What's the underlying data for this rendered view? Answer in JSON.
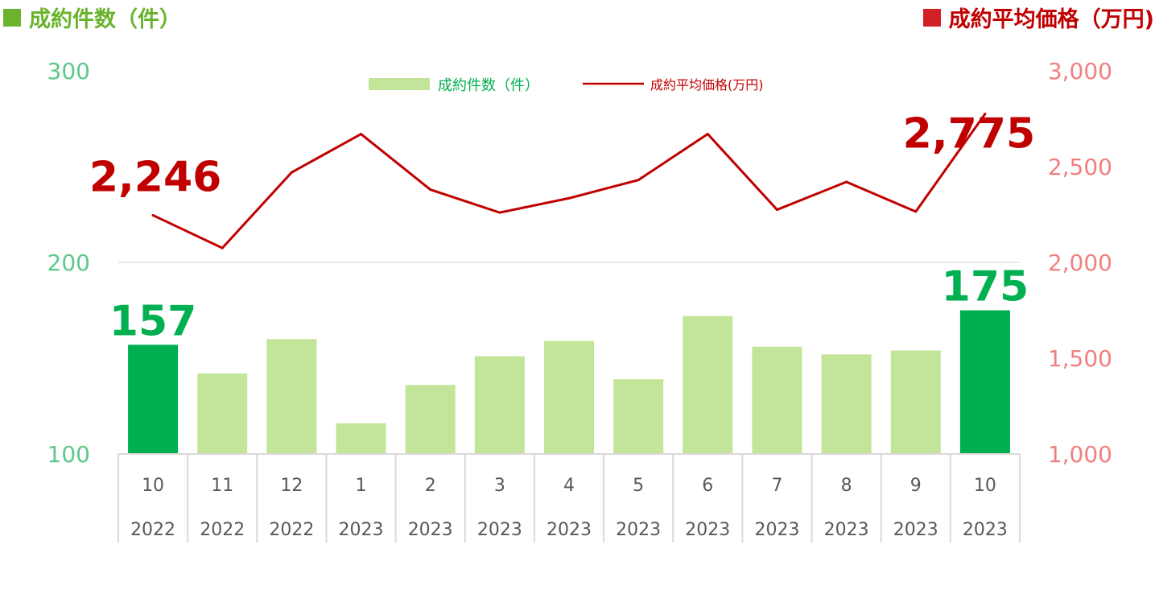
{
  "header": {
    "left_title": "成約件数（件）",
    "right_title": "成約平均価格（万円)",
    "left_color": "#6ab42d",
    "right_color": "#d12127"
  },
  "chart_data": {
    "type": "bar+line",
    "categories": [
      {
        "month": "10",
        "year": "2022"
      },
      {
        "month": "11",
        "year": "2022"
      },
      {
        "month": "12",
        "year": "2022"
      },
      {
        "month": "1",
        "year": "2023"
      },
      {
        "month": "2",
        "year": "2023"
      },
      {
        "month": "3",
        "year": "2023"
      },
      {
        "month": "4",
        "year": "2023"
      },
      {
        "month": "5",
        "year": "2023"
      },
      {
        "month": "6",
        "year": "2023"
      },
      {
        "month": "7",
        "year": "2023"
      },
      {
        "month": "8",
        "year": "2023"
      },
      {
        "month": "9",
        "year": "2023"
      },
      {
        "month": "10",
        "year": "2023"
      }
    ],
    "series": [
      {
        "name": "成約件数（件）",
        "type": "bar",
        "axis": "left",
        "values": [
          157,
          142,
          160,
          116,
          136,
          151,
          159,
          139,
          172,
          156,
          152,
          154,
          175
        ],
        "color": "#c3e59a",
        "highlight_color": "#00b050",
        "highlight_indices": [
          0,
          12
        ]
      },
      {
        "name": "成約平均価格(万円)",
        "type": "line",
        "axis": "right",
        "values": [
          2246,
          2075,
          2470,
          2670,
          2380,
          2260,
          2335,
          2430,
          2670,
          2275,
          2420,
          2265,
          2775
        ],
        "color": "#c00000"
      }
    ],
    "y_left": {
      "min": 100,
      "max": 300,
      "ticks": [
        "100",
        "200",
        "300"
      ],
      "color": "#5cc98a"
    },
    "y_right": {
      "min": 1000,
      "max": 3000,
      "ticks": [
        "1,000",
        "1,500",
        "2,000",
        "2,500",
        "3,000"
      ],
      "color": "#f08080"
    },
    "data_labels": [
      {
        "series": 0,
        "index": 0,
        "text": "157",
        "color": "#00b050"
      },
      {
        "series": 0,
        "index": 12,
        "text": "175",
        "color": "#00b050"
      },
      {
        "series": 1,
        "index": 0,
        "text": "2,246",
        "color": "#c00000"
      },
      {
        "series": 1,
        "index": 12,
        "text": "2,775",
        "color": "#c00000"
      }
    ],
    "legend": {
      "position": "top-center",
      "entries": [
        "成約件数（件）",
        "成約平均価格(万円)"
      ]
    },
    "grid": "horizontal-200-only"
  }
}
